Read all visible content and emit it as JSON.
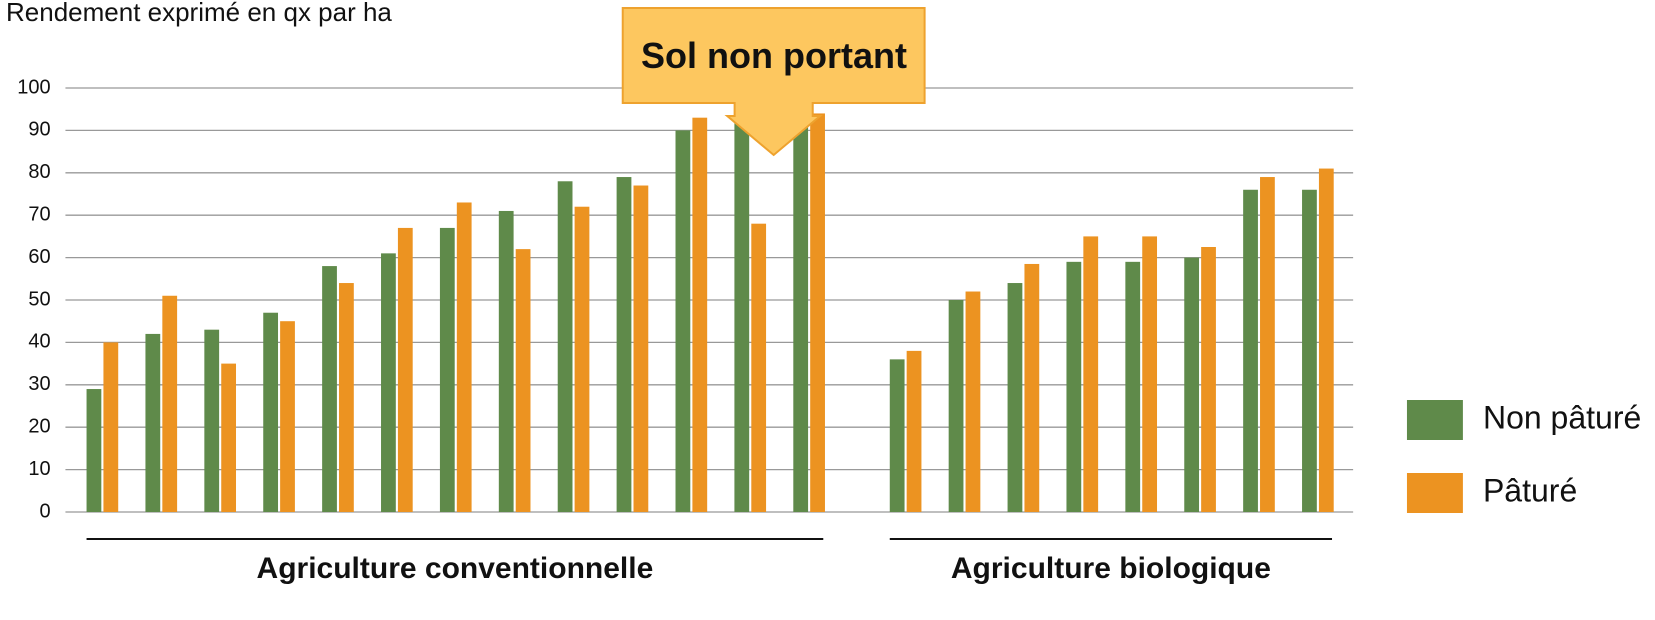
{
  "chart_data": {
    "type": "bar",
    "title": "Rendement exprimé en qx par ha",
    "annotation": "Sol non portant",
    "groups": [
      "Agriculture conventionnelle",
      "Agriculture biologique"
    ],
    "categories": [
      [
        null,
        null,
        null,
        null,
        null,
        null,
        null,
        null,
        null,
        null,
        null,
        null,
        null
      ],
      [
        null,
        null,
        null,
        null,
        null,
        null,
        null,
        null
      ]
    ],
    "series": [
      {
        "name": "Non pâturé",
        "color": "#5f8a4a",
        "values": [
          [
            29,
            42,
            43,
            47,
            58,
            61,
            67,
            71,
            78,
            79,
            90,
            93,
            97
          ],
          [
            36,
            50,
            54,
            59,
            59,
            60,
            76,
            76
          ]
        ]
      },
      {
        "name": "Pâturé",
        "color": "#ec9321",
        "values": [
          [
            40,
            51,
            35,
            45,
            54,
            67,
            73,
            62,
            72,
            77,
            93,
            68,
            94
          ],
          [
            38,
            52,
            58.5,
            65,
            65,
            62.5,
            79,
            81
          ]
        ]
      }
    ],
    "ylim": [
      0,
      100
    ],
    "yticks": [
      0,
      10,
      20,
      30,
      40,
      50,
      60,
      70,
      80,
      90,
      100
    ],
    "grid": true,
    "legend": "right"
  }
}
